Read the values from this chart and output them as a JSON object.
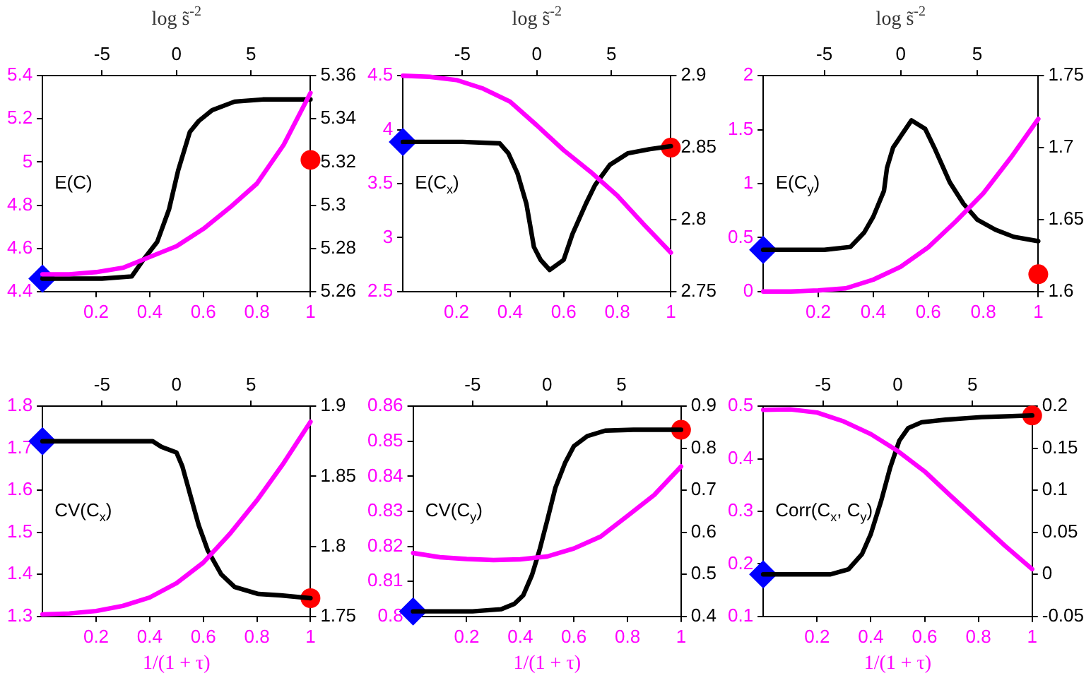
{
  "chart_data": [
    {
      "type": "line",
      "x2label": "log s̃$^{-2}$",
      "annotations": [
        "E(C)"
      ],
      "xlim": [
        0,
        1
      ],
      "xticks": [
        0.2,
        0.4,
        0.6,
        0.8,
        1
      ],
      "x2lim": [
        -9,
        9
      ],
      "x2ticks": [
        -5,
        0,
        5
      ],
      "ylim": [
        4.4,
        5.4
      ],
      "yticks": [
        4.4,
        4.6,
        4.8,
        5,
        5.2,
        5.4
      ],
      "y2lim": [
        5.26,
        5.36
      ],
      "y2ticks": [
        5.26,
        5.28,
        5.3,
        5.32,
        5.34,
        5.36
      ],
      "line_style": "solid",
      "series": [
        {
          "color": "#ff00ff",
          "marker": "none",
          "x": [
            0,
            0.1,
            0.2,
            0.3,
            0.4,
            0.5,
            0.6,
            0.7,
            0.8,
            0.9,
            1
          ],
          "values": [
            4.48,
            4.48,
            4.49,
            4.51,
            4.56,
            4.61,
            4.69,
            4.79,
            4.9,
            5.08,
            5.32
          ]
        },
        {
          "color": "#000000",
          "marker": "none",
          "axis": "y2",
          "x": [
            0,
            0.222,
            0.333,
            0.378,
            0.428,
            0.472,
            0.506,
            0.55,
            0.583,
            0.633,
            0.717,
            0.822,
            1
          ],
          "values": [
            5.266,
            5.266,
            5.267,
            5.275,
            5.283,
            5.298,
            5.316,
            5.334,
            5.339,
            5.344,
            5.348,
            5.349,
            5.349
          ]
        },
        {
          "type": "scatter",
          "color": "#0000ff",
          "marker": "diamond",
          "axis": "y2",
          "x": [
            0
          ],
          "values": [
            5.266
          ]
        },
        {
          "type": "scatter",
          "color": "#ff0000",
          "marker": "circle",
          "axis": "y2",
          "x": [
            1
          ],
          "values": [
            5.321
          ]
        }
      ]
    },
    {
      "type": "line",
      "x2label": "log s̃$^{-2}$",
      "annotations": [
        "E(C$_{x}$)"
      ],
      "xlim": [
        0,
        1
      ],
      "xticks": [
        0.2,
        0.4,
        0.6,
        0.8,
        1
      ],
      "x2lim": [
        -9,
        9
      ],
      "x2ticks": [
        -5,
        0,
        5
      ],
      "ylim": [
        2.5,
        4.5
      ],
      "yticks": [
        2.5,
        3,
        3.5,
        4,
        4.5
      ],
      "y2lim": [
        2.75,
        2.9
      ],
      "y2ticks": [
        2.75,
        2.8,
        2.85,
        2.9
      ],
      "line_style": "solid",
      "series": [
        {
          "color": "#ff00ff",
          "marker": "none",
          "x": [
            0,
            0.1,
            0.2,
            0.3,
            0.4,
            0.5,
            0.6,
            0.7,
            0.8,
            0.9,
            1
          ],
          "values": [
            4.5,
            4.49,
            4.46,
            4.38,
            4.26,
            4.04,
            3.81,
            3.61,
            3.39,
            3.12,
            2.86
          ]
        },
        {
          "color": "#000000",
          "marker": "none",
          "axis": "y2",
          "x": [
            0,
            0.222,
            0.361,
            0.394,
            0.428,
            0.461,
            0.489,
            0.514,
            0.548,
            0.6,
            0.633,
            0.683,
            0.717,
            0.772,
            0.839,
            0.922,
            1
          ],
          "values": [
            2.854,
            2.854,
            2.853,
            2.846,
            2.832,
            2.811,
            2.781,
            2.772,
            2.765,
            2.772,
            2.79,
            2.811,
            2.824,
            2.838,
            2.846,
            2.849,
            2.851
          ]
        },
        {
          "type": "scatter",
          "color": "#0000ff",
          "marker": "diamond",
          "axis": "y2",
          "x": [
            0
          ],
          "values": [
            2.854
          ]
        },
        {
          "type": "scatter",
          "color": "#ff0000",
          "marker": "circle",
          "axis": "y2",
          "x": [
            1
          ],
          "values": [
            2.85
          ]
        }
      ]
    },
    {
      "type": "line",
      "x2label": "log s̃$^{-2}$",
      "annotations": [
        "E(C$_{y}$)"
      ],
      "xlim": [
        0,
        1
      ],
      "xticks": [
        0.2,
        0.4,
        0.6,
        0.8,
        1
      ],
      "x2lim": [
        -9,
        9
      ],
      "x2ticks": [
        -5,
        0,
        5
      ],
      "ylim": [
        0,
        2
      ],
      "yticks": [
        0,
        0.5,
        1,
        1.5,
        2
      ],
      "y2lim": [
        1.6,
        1.75
      ],
      "y2ticks": [
        1.6,
        1.65,
        1.7,
        1.75
      ],
      "line_style": "solid",
      "series": [
        {
          "color": "#ff00ff",
          "marker": "none",
          "x": [
            0,
            0.1,
            0.2,
            0.3,
            0.4,
            0.5,
            0.6,
            0.7,
            0.8,
            0.9,
            1
          ],
          "values": [
            0,
            0,
            0.01,
            0.03,
            0.11,
            0.23,
            0.41,
            0.65,
            0.91,
            1.24,
            1.6
          ]
        },
        {
          "color": "#000000",
          "marker": "none",
          "axis": "y2",
          "x": [
            0,
            0.222,
            0.317,
            0.367,
            0.4,
            0.439,
            0.45,
            0.472,
            0.5,
            0.539,
            0.589,
            0.622,
            0.678,
            0.728,
            0.778,
            0.844,
            0.911,
            1
          ],
          "values": [
            1.629,
            1.629,
            1.631,
            1.641,
            1.652,
            1.67,
            1.686,
            1.7,
            1.708,
            1.719,
            1.713,
            1.7,
            1.676,
            1.661,
            1.65,
            1.643,
            1.638,
            1.635
          ]
        },
        {
          "type": "scatter",
          "color": "#0000ff",
          "marker": "diamond",
          "axis": "y2",
          "x": [
            0
          ],
          "values": [
            1.629
          ]
        },
        {
          "type": "scatter",
          "color": "#ff0000",
          "marker": "circle",
          "axis": "y2",
          "x": [
            1
          ],
          "values": [
            1.612
          ]
        }
      ]
    },
    {
      "type": "line",
      "xlabel": "1/(1 + τ)",
      "annotations": [
        "CV(C$_{x}$)"
      ],
      "xlim": [
        0,
        1
      ],
      "xticks": [
        0.2,
        0.4,
        0.6,
        0.8,
        1
      ],
      "x2lim": [
        -9,
        9
      ],
      "x2ticks": [
        -5,
        0,
        5
      ],
      "ylim": [
        1.3,
        1.8
      ],
      "yticks": [
        1.3,
        1.4,
        1.5,
        1.6,
        1.7,
        1.8
      ],
      "y2lim": [
        1.75,
        1.9
      ],
      "y2ticks": [
        1.75,
        1.8,
        1.85,
        1.9
      ],
      "line_style": "solid",
      "series": [
        {
          "color": "#ff00ff",
          "marker": "none",
          "x": [
            0,
            0.1,
            0.2,
            0.3,
            0.4,
            0.5,
            0.6,
            0.7,
            0.8,
            0.9,
            1
          ],
          "values": [
            1.305,
            1.307,
            1.313,
            1.325,
            1.345,
            1.379,
            1.428,
            1.497,
            1.576,
            1.665,
            1.763
          ]
        },
        {
          "color": "#000000",
          "marker": "none",
          "axis": "y2",
          "x": [
            0,
            0.222,
            0.411,
            0.444,
            0.5,
            0.522,
            0.548,
            0.583,
            0.617,
            0.667,
            0.717,
            0.806,
            0.889,
            1
          ],
          "values": [
            1.875,
            1.875,
            1.875,
            1.871,
            1.867,
            1.857,
            1.839,
            1.815,
            1.797,
            1.78,
            1.771,
            1.766,
            1.765,
            1.763
          ]
        },
        {
          "type": "scatter",
          "color": "#0000ff",
          "marker": "diamond",
          "axis": "y2",
          "x": [
            0
          ],
          "values": [
            1.875
          ]
        },
        {
          "type": "scatter",
          "color": "#ff0000",
          "marker": "circle",
          "axis": "y2",
          "x": [
            1
          ],
          "values": [
            1.763
          ]
        }
      ]
    },
    {
      "type": "line",
      "xlabel": "1/(1 + τ)",
      "annotations": [
        "CV(C$_{y}$)"
      ],
      "xlim": [
        0,
        1
      ],
      "xticks": [
        0.2,
        0.4,
        0.6,
        0.8,
        1
      ],
      "x2lim": [
        -9,
        9
      ],
      "x2ticks": [
        -5,
        0,
        5
      ],
      "ylim": [
        0.8,
        0.86
      ],
      "yticks": [
        0.8,
        0.81,
        0.82,
        0.83,
        0.84,
        0.85,
        0.86
      ],
      "y2lim": [
        0.4,
        0.9
      ],
      "y2ticks": [
        0.4,
        0.5,
        0.6,
        0.7,
        0.8,
        0.9
      ],
      "line_style": "solid",
      "series": [
        {
          "color": "#ff00ff",
          "marker": "none",
          "x": [
            0,
            0.1,
            0.2,
            0.3,
            0.4,
            0.5,
            0.6,
            0.7,
            0.8,
            0.9,
            1
          ],
          "values": [
            0.8181,
            0.8169,
            0.8164,
            0.8161,
            0.8163,
            0.8171,
            0.8194,
            0.8228,
            0.8287,
            0.8347,
            0.8428
          ]
        },
        {
          "color": "#000000",
          "marker": "none",
          "axis": "y2",
          "x": [
            0,
            0.222,
            0.328,
            0.378,
            0.411,
            0.444,
            0.472,
            0.5,
            0.531,
            0.567,
            0.6,
            0.65,
            0.717,
            0.822,
            1
          ],
          "values": [
            0.412,
            0.412,
            0.417,
            0.43,
            0.45,
            0.499,
            0.558,
            0.627,
            0.706,
            0.765,
            0.805,
            0.829,
            0.842,
            0.844,
            0.844
          ]
        },
        {
          "type": "scatter",
          "color": "#0000ff",
          "marker": "diamond",
          "axis": "y2",
          "x": [
            0
          ],
          "values": [
            0.412
          ]
        },
        {
          "type": "scatter",
          "color": "#ff0000",
          "marker": "circle",
          "axis": "y2",
          "x": [
            1
          ],
          "values": [
            0.844
          ]
        }
      ]
    },
    {
      "type": "line",
      "xlabel": "1/(1 + τ)",
      "annotations": [
        "Corr(C$_{x}$, C$_{y}$)"
      ],
      "xlim": [
        0,
        1
      ],
      "xticks": [
        0.2,
        0.4,
        0.6,
        0.8,
        1
      ],
      "x2lim": [
        -9,
        9
      ],
      "x2ticks": [
        -5,
        0,
        5
      ],
      "ylim": [
        0.1,
        0.5
      ],
      "yticks": [
        0.1,
        0.2,
        0.3,
        0.4,
        0.5
      ],
      "y2lim": [
        -0.05,
        0.2
      ],
      "y2ticks": [
        -0.05,
        0,
        0.05,
        0.1,
        0.15,
        0.2
      ],
      "line_style": "solid",
      "series": [
        {
          "color": "#ff00ff",
          "marker": "none",
          "x": [
            0,
            0.1,
            0.2,
            0.3,
            0.4,
            0.5,
            0.6,
            0.7,
            0.8,
            0.9,
            1
          ],
          "values": [
            0.493,
            0.494,
            0.488,
            0.471,
            0.447,
            0.415,
            0.376,
            0.328,
            0.281,
            0.234,
            0.19
          ]
        },
        {
          "color": "#000000",
          "marker": "none",
          "axis": "y2",
          "x": [
            0,
            0.25,
            0.317,
            0.367,
            0.4,
            0.439,
            0.472,
            0.506,
            0.539,
            0.589,
            0.678,
            0.811,
            1
          ],
          "values": [
            0,
            0,
            0.006,
            0.024,
            0.048,
            0.088,
            0.127,
            0.159,
            0.174,
            0.181,
            0.184,
            0.187,
            0.189
          ]
        },
        {
          "type": "scatter",
          "color": "#0000ff",
          "marker": "diamond",
          "axis": "y2",
          "x": [
            0
          ],
          "values": [
            0
          ]
        },
        {
          "type": "scatter",
          "color": "#ff0000",
          "marker": "circle",
          "axis": "y2",
          "x": [
            1
          ],
          "values": [
            0.189
          ]
        }
      ]
    }
  ]
}
